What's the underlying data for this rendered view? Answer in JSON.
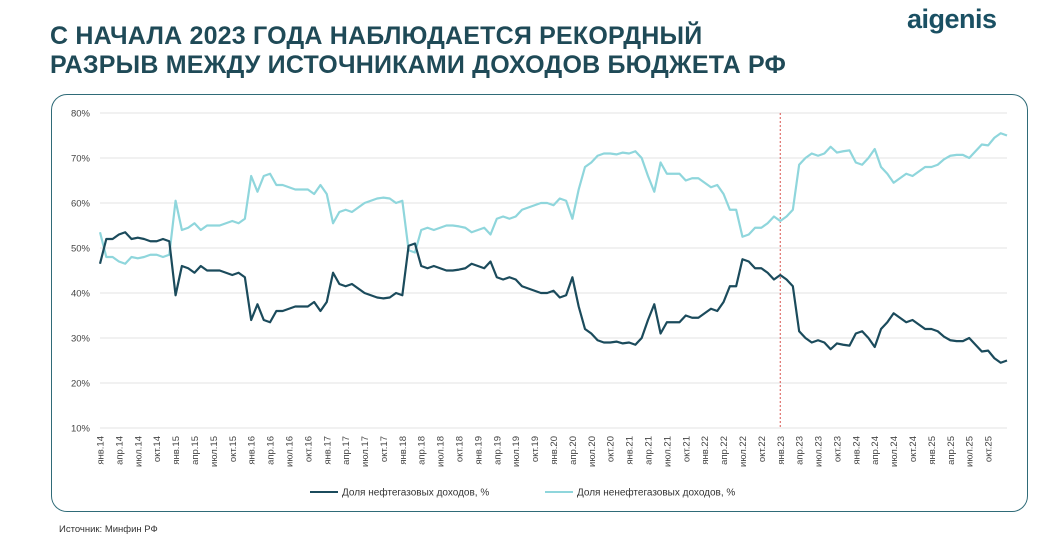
{
  "header": {
    "title_line1": "С НАЧАЛА 2023 ГОДА НАБЛЮДАЕТСЯ РЕКОРДНЫЙ",
    "title_line2": "РАЗРЫВ МЕЖДУ ИСТОЧНИКАМИ ДОХОДОВ БЮДЖЕТА РФ",
    "logo": "aigenis"
  },
  "footer": {
    "source": "Источник: Минфин РФ"
  },
  "colors": {
    "title": "#1f4a57",
    "oil_gas": "#1b4b5c",
    "non_oil_gas": "#8fd6dc",
    "divider": "#d9534f",
    "panel_border": "#2f6b78"
  },
  "chart_data": {
    "type": "line",
    "x_labels": [
      "янв.14",
      "апр.14",
      "июл.14",
      "окт.14",
      "янв.15",
      "апр.15",
      "июл.15",
      "окт.15",
      "янв.16",
      "апр.16",
      "июл.16",
      "окт.16",
      "янв.17",
      "апр.17",
      "июл.17",
      "окт.17",
      "янв.18",
      "апр.18",
      "июл.18",
      "окт.18",
      "янв.19",
      "апр.19",
      "июл.19",
      "окт.19",
      "янв.20",
      "апр.20",
      "июл.20",
      "окт.20",
      "янв.21",
      "апр.21",
      "июл.21",
      "окт.21",
      "янв.22",
      "апр.22",
      "июл.22",
      "окт.22",
      "янв.23",
      "апр.23",
      "июл.23",
      "окт.23",
      "янв.24",
      "апр.24",
      "июл.24",
      "окт.24",
      "янв.25",
      "апр.25",
      "июл.25",
      "окт.25"
    ],
    "x_note": "monthly data from янв.14 to окт.25; labels shown quarterly",
    "y_ticks": [
      "10%",
      "20%",
      "30%",
      "40%",
      "50%",
      "60%",
      "70%",
      "80%"
    ],
    "ylim": [
      10,
      80
    ],
    "ylabel": "",
    "grid": true,
    "legend_position": "bottom",
    "divider_at": "янв.23",
    "series": [
      {
        "name": "Доля нефтегазовых доходов, %",
        "values": [
          46.5,
          52,
          52,
          53,
          53.5,
          52,
          52.3,
          52,
          51.5,
          51.5,
          52,
          51.5,
          39.5,
          46,
          45.5,
          44.5,
          46,
          45,
          45,
          45,
          44.5,
          44,
          44.5,
          43.5,
          34,
          37.5,
          34,
          33.5,
          36,
          36,
          36.5,
          37,
          37,
          37,
          38,
          36,
          38,
          44.5,
          42,
          41.5,
          42,
          41,
          40,
          39.5,
          39,
          38.8,
          39,
          40,
          39.5,
          50.5,
          51,
          46,
          45.5,
          46,
          45.5,
          45,
          45,
          45.2,
          45.5,
          46.5,
          46,
          45.5,
          47,
          43.5,
          43,
          43.5,
          43,
          41.5,
          41,
          40.5,
          40,
          40,
          40.5,
          39,
          39.5,
          43.5,
          37,
          32,
          31,
          29.5,
          29,
          29,
          29.2,
          28.8,
          29,
          28.5,
          30,
          34,
          37.5,
          31,
          33.5,
          33.5,
          33.5,
          35,
          34.5,
          34.5,
          35.5,
          36.5,
          36,
          38,
          41.5,
          41.5,
          47.5,
          47,
          45.5,
          45.5,
          44.5,
          43,
          44,
          43,
          41.5,
          31.5,
          30,
          29,
          29.5,
          29,
          27.5,
          28.8,
          28.5,
          28.3,
          31,
          31.5,
          30,
          28,
          32,
          33.5,
          35.5,
          34.5,
          33.5,
          34,
          33,
          32,
          32,
          31.5,
          30.3,
          29.5,
          29.3,
          29.3,
          30,
          28.5,
          27,
          27.2,
          25.5,
          24.5,
          25
        ]
      },
      {
        "name": "Доля ненефтегазовых доходов, %",
        "values": [
          53.5,
          48,
          48,
          47,
          46.5,
          48,
          47.7,
          48,
          48.5,
          48.5,
          48,
          48.5,
          60.5,
          54,
          54.5,
          55.5,
          54,
          55,
          55,
          55,
          55.5,
          56,
          55.5,
          56.5,
          66,
          62.5,
          66,
          66.5,
          64,
          64,
          63.5,
          63,
          63,
          63,
          62,
          64,
          62,
          55.5,
          58,
          58.5,
          58,
          59,
          60,
          60.5,
          61,
          61.2,
          61,
          60,
          60.5,
          49.5,
          49,
          54,
          54.5,
          54,
          54.5,
          55,
          55,
          54.8,
          54.5,
          53.5,
          54,
          54.5,
          53,
          56.5,
          57,
          56.5,
          57,
          58.5,
          59,
          59.5,
          60,
          60,
          59.5,
          61,
          60.5,
          56.5,
          63,
          68,
          69,
          70.5,
          71,
          71,
          70.8,
          71.2,
          71,
          71.5,
          70,
          66,
          62.5,
          69,
          66.5,
          66.5,
          66.5,
          65,
          65.5,
          65.5,
          64.5,
          63.5,
          64,
          62,
          58.5,
          58.5,
          52.5,
          53,
          54.5,
          54.5,
          55.5,
          57,
          56,
          57,
          58.5,
          68.5,
          70,
          71,
          70.5,
          71,
          72.5,
          71.2,
          71.5,
          71.7,
          69,
          68.5,
          70,
          72,
          68,
          66.5,
          64.5,
          65.5,
          66.5,
          66,
          67,
          68,
          68,
          68.5,
          69.7,
          70.5,
          70.7,
          70.7,
          70,
          71.5,
          73,
          72.8,
          74.5,
          75.5,
          75
        ]
      }
    ]
  }
}
